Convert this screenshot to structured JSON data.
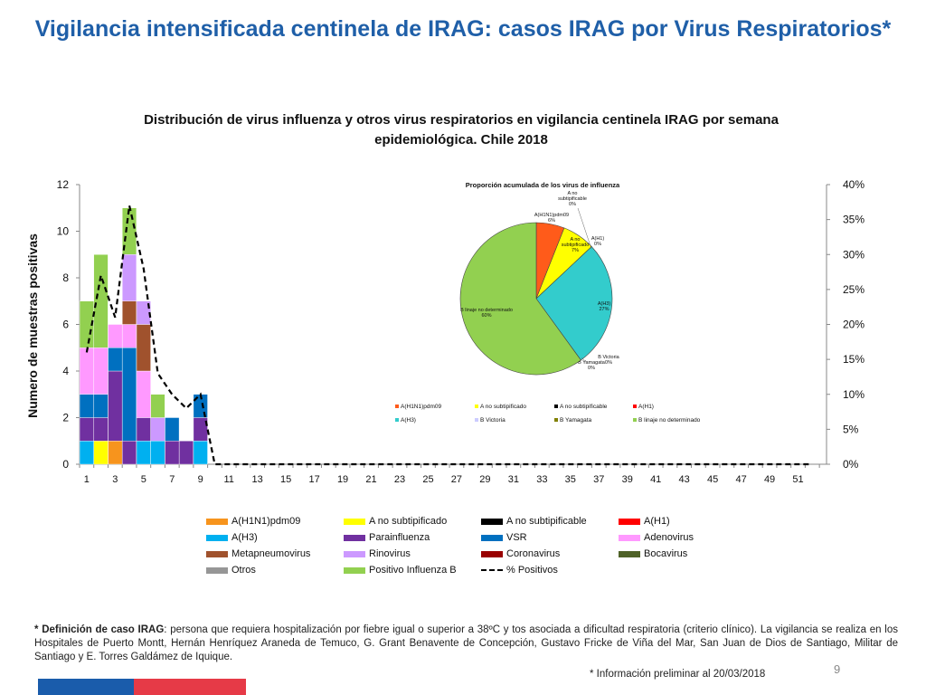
{
  "slide": {
    "title": "Vigilancia intensificada centinela de IRAG: casos IRAG por  Virus Respiratorios*",
    "footnote_bold": "* Definición de caso IRAG",
    "footnote_text": ": persona que requiera hospitalización por fiebre igual o superior a 38ºC y tos asociada a dificultad respiratoria (criterio clínico). La vigilancia se realiza en los Hospitales de Puerto Montt, Hernán Henríquez Araneda de  Temuco, G. Grant Benavente de Concepción, Gustavo Fricke de Viña del Mar, San Juan de Dios de Santiago, Militar de Santiago y E. Torres Galdámez de Iquique.",
    "preliminary": "* Información  preliminar  al 20/03/2018",
    "page_number": "9"
  },
  "chart_data": [
    {
      "type": "bar",
      "title": "Distribución de virus influenza y otros virus respiratorios en vigilancia centinela IRAG por semana epidemiológica. Chile 2018",
      "ylabel": "Numero de muestras positivas",
      "ylim": [
        0,
        12
      ],
      "yticks": [
        "0",
        "2",
        "4",
        "6",
        "8",
        "10",
        "12"
      ],
      "y2lim": [
        0,
        40
      ],
      "y2ticks": [
        "0%",
        "5%",
        "10%",
        "15%",
        "20%",
        "25%",
        "30%",
        "35%",
        "40%"
      ],
      "x": [
        1,
        2,
        3,
        4,
        5,
        6,
        7,
        8,
        9,
        10,
        11,
        12,
        13,
        14,
        15,
        16,
        17,
        18,
        19,
        20,
        21,
        22,
        23,
        24,
        25,
        26,
        27,
        28,
        29,
        30,
        31,
        32,
        33,
        34,
        35,
        36,
        37,
        38,
        39,
        40,
        41,
        42,
        43,
        44,
        45,
        46,
        47,
        48,
        49,
        50,
        51,
        52
      ],
      "xticks": [
        "1",
        "3",
        "5",
        "7",
        "9",
        "11",
        "13",
        "15",
        "17",
        "19",
        "21",
        "23",
        "25",
        "27",
        "29",
        "31",
        "33",
        "35",
        "37",
        "39",
        "41",
        "43",
        "45",
        "47",
        "49",
        "51"
      ],
      "stacked": true,
      "series": [
        {
          "name": "A(H1N1)pdm09",
          "color": "#f7941d",
          "values": [
            0,
            0,
            1,
            0,
            0,
            0,
            0,
            0,
            0,
            0,
            0,
            0,
            0,
            0,
            0,
            0,
            0,
            0,
            0,
            0,
            0,
            0,
            0,
            0,
            0,
            0,
            0,
            0,
            0,
            0,
            0,
            0,
            0,
            0,
            0,
            0,
            0,
            0,
            0,
            0,
            0,
            0,
            0,
            0,
            0,
            0,
            0,
            0,
            0,
            0,
            0,
            0
          ]
        },
        {
          "name": "A no subtipificado",
          "color": "#ffff00",
          "values": [
            0,
            1,
            0,
            0,
            0,
            0,
            0,
            0,
            0,
            0,
            0,
            0,
            0,
            0,
            0,
            0,
            0,
            0,
            0,
            0,
            0,
            0,
            0,
            0,
            0,
            0,
            0,
            0,
            0,
            0,
            0,
            0,
            0,
            0,
            0,
            0,
            0,
            0,
            0,
            0,
            0,
            0,
            0,
            0,
            0,
            0,
            0,
            0,
            0,
            0,
            0,
            0
          ]
        },
        {
          "name": "A no subtipificable",
          "color": "#000000",
          "values": [
            0,
            0,
            0,
            0,
            0,
            0,
            0,
            0,
            0,
            0,
            0,
            0,
            0,
            0,
            0,
            0,
            0,
            0,
            0,
            0,
            0,
            0,
            0,
            0,
            0,
            0,
            0,
            0,
            0,
            0,
            0,
            0,
            0,
            0,
            0,
            0,
            0,
            0,
            0,
            0,
            0,
            0,
            0,
            0,
            0,
            0,
            0,
            0,
            0,
            0,
            0,
            0
          ]
        },
        {
          "name": "A(H1)",
          "color": "#ff0000",
          "values": [
            0,
            0,
            0,
            0,
            0,
            0,
            0,
            0,
            0,
            0,
            0,
            0,
            0,
            0,
            0,
            0,
            0,
            0,
            0,
            0,
            0,
            0,
            0,
            0,
            0,
            0,
            0,
            0,
            0,
            0,
            0,
            0,
            0,
            0,
            0,
            0,
            0,
            0,
            0,
            0,
            0,
            0,
            0,
            0,
            0,
            0,
            0,
            0,
            0,
            0,
            0,
            0
          ]
        },
        {
          "name": "A(H3)",
          "color": "#00b0f0",
          "values": [
            1,
            0,
            0,
            0,
            1,
            1,
            0,
            0,
            1,
            0,
            0,
            0,
            0,
            0,
            0,
            0,
            0,
            0,
            0,
            0,
            0,
            0,
            0,
            0,
            0,
            0,
            0,
            0,
            0,
            0,
            0,
            0,
            0,
            0,
            0,
            0,
            0,
            0,
            0,
            0,
            0,
            0,
            0,
            0,
            0,
            0,
            0,
            0,
            0,
            0,
            0,
            0
          ]
        },
        {
          "name": "Parainfluenza",
          "color": "#7030a0",
          "values": [
            1,
            1,
            3,
            1,
            1,
            0,
            1,
            1,
            1,
            0,
            0,
            0,
            0,
            0,
            0,
            0,
            0,
            0,
            0,
            0,
            0,
            0,
            0,
            0,
            0,
            0,
            0,
            0,
            0,
            0,
            0,
            0,
            0,
            0,
            0,
            0,
            0,
            0,
            0,
            0,
            0,
            0,
            0,
            0,
            0,
            0,
            0,
            0,
            0,
            0,
            0,
            0
          ]
        },
        {
          "name": "VSR",
          "color": "#0070c0",
          "values": [
            1,
            1,
            1,
            4,
            0,
            0,
            1,
            0,
            1,
            0,
            0,
            0,
            0,
            0,
            0,
            0,
            0,
            0,
            0,
            0,
            0,
            0,
            0,
            0,
            0,
            0,
            0,
            0,
            0,
            0,
            0,
            0,
            0,
            0,
            0,
            0,
            0,
            0,
            0,
            0,
            0,
            0,
            0,
            0,
            0,
            0,
            0,
            0,
            0,
            0,
            0,
            0
          ]
        },
        {
          "name": "Adenovirus",
          "color": "#ff99ff",
          "values": [
            2,
            2,
            1,
            1,
            2,
            0,
            0,
            0,
            0,
            0,
            0,
            0,
            0,
            0,
            0,
            0,
            0,
            0,
            0,
            0,
            0,
            0,
            0,
            0,
            0,
            0,
            0,
            0,
            0,
            0,
            0,
            0,
            0,
            0,
            0,
            0,
            0,
            0,
            0,
            0,
            0,
            0,
            0,
            0,
            0,
            0,
            0,
            0,
            0,
            0,
            0,
            0
          ]
        },
        {
          "name": "Metapneumovirus",
          "color": "#a0522d",
          "values": [
            0,
            0,
            0,
            1,
            2,
            0,
            0,
            0,
            0,
            0,
            0,
            0,
            0,
            0,
            0,
            0,
            0,
            0,
            0,
            0,
            0,
            0,
            0,
            0,
            0,
            0,
            0,
            0,
            0,
            0,
            0,
            0,
            0,
            0,
            0,
            0,
            0,
            0,
            0,
            0,
            0,
            0,
            0,
            0,
            0,
            0,
            0,
            0,
            0,
            0,
            0,
            0
          ]
        },
        {
          "name": "Rinovirus",
          "color": "#cc99ff",
          "values": [
            0,
            0,
            0,
            2,
            1,
            1,
            0,
            0,
            0,
            0,
            0,
            0,
            0,
            0,
            0,
            0,
            0,
            0,
            0,
            0,
            0,
            0,
            0,
            0,
            0,
            0,
            0,
            0,
            0,
            0,
            0,
            0,
            0,
            0,
            0,
            0,
            0,
            0,
            0,
            0,
            0,
            0,
            0,
            0,
            0,
            0,
            0,
            0,
            0,
            0,
            0,
            0
          ]
        },
        {
          "name": "Coronavirus",
          "color": "#990000",
          "values": [
            0,
            0,
            0,
            0,
            0,
            0,
            0,
            0,
            0,
            0,
            0,
            0,
            0,
            0,
            0,
            0,
            0,
            0,
            0,
            0,
            0,
            0,
            0,
            0,
            0,
            0,
            0,
            0,
            0,
            0,
            0,
            0,
            0,
            0,
            0,
            0,
            0,
            0,
            0,
            0,
            0,
            0,
            0,
            0,
            0,
            0,
            0,
            0,
            0,
            0,
            0,
            0
          ]
        },
        {
          "name": "Bocavirus",
          "color": "#4f6228",
          "values": [
            0,
            0,
            0,
            0,
            0,
            0,
            0,
            0,
            0,
            0,
            0,
            0,
            0,
            0,
            0,
            0,
            0,
            0,
            0,
            0,
            0,
            0,
            0,
            0,
            0,
            0,
            0,
            0,
            0,
            0,
            0,
            0,
            0,
            0,
            0,
            0,
            0,
            0,
            0,
            0,
            0,
            0,
            0,
            0,
            0,
            0,
            0,
            0,
            0,
            0,
            0,
            0
          ]
        },
        {
          "name": "Otros",
          "color": "#969696",
          "values": [
            0,
            0,
            0,
            0,
            0,
            0,
            0,
            0,
            0,
            0,
            0,
            0,
            0,
            0,
            0,
            0,
            0,
            0,
            0,
            0,
            0,
            0,
            0,
            0,
            0,
            0,
            0,
            0,
            0,
            0,
            0,
            0,
            0,
            0,
            0,
            0,
            0,
            0,
            0,
            0,
            0,
            0,
            0,
            0,
            0,
            0,
            0,
            0,
            0,
            0,
            0,
            0
          ]
        },
        {
          "name": "Positivo Influenza  B",
          "color": "#92d050",
          "values": [
            2,
            4,
            0,
            2,
            0,
            1,
            0,
            0,
            0,
            0,
            0,
            0,
            0,
            0,
            0,
            0,
            0,
            0,
            0,
            0,
            0,
            0,
            0,
            0,
            0,
            0,
            0,
            0,
            0,
            0,
            0,
            0,
            0,
            0,
            0,
            0,
            0,
            0,
            0,
            0,
            0,
            0,
            0,
            0,
            0,
            0,
            0,
            0,
            0,
            0,
            0,
            0
          ]
        }
      ],
      "line": {
        "name": "% Positivos",
        "axis": "secondary",
        "values": [
          16,
          27,
          21,
          37,
          28,
          13,
          10,
          8,
          10,
          0,
          0,
          0,
          0,
          0,
          0,
          0,
          0,
          0,
          0,
          0,
          0,
          0,
          0,
          0,
          0,
          0,
          0,
          0,
          0,
          0,
          0,
          0,
          0,
          0,
          0,
          0,
          0,
          0,
          0,
          0,
          0,
          0,
          0,
          0,
          0,
          0,
          0,
          0,
          0,
          0,
          0,
          0
        ]
      },
      "legend": "bottom"
    },
    {
      "type": "pie",
      "title": "Proporción acumulada de los virus de influenza",
      "slices": [
        {
          "name": "A(H1N1)pdm09",
          "value": 6,
          "label": "A(H1N1)pdm09\n6%",
          "color": "#ff5b1a"
        },
        {
          "name": "A no subtipificado",
          "value": 7,
          "label": "A no\nsubtipificado\n7%",
          "color": "#ffff00"
        },
        {
          "name": "A no subtipificable",
          "value": 0,
          "label": "A no\nsubtipificable\n0%",
          "color": "#000000"
        },
        {
          "name": "A(H1)",
          "value": 0,
          "label": "A(H1)\n0%",
          "color": "#ff0000"
        },
        {
          "name": "A(H3)",
          "value": 27,
          "label": "A(H3)\n27%",
          "color": "#33cccc"
        },
        {
          "name": "B Victoria",
          "value": 0,
          "label": "B Victoria\n0%",
          "color": "#ccccff"
        },
        {
          "name": "B Yamagata",
          "value": 0,
          "label": "B Yamagata\n0%",
          "color": "#808000"
        },
        {
          "name": "B linaje no determinado",
          "value": 60,
          "label": "B linaje no determinado\n60%",
          "color": "#92d050"
        }
      ],
      "legend": "bottom"
    }
  ]
}
